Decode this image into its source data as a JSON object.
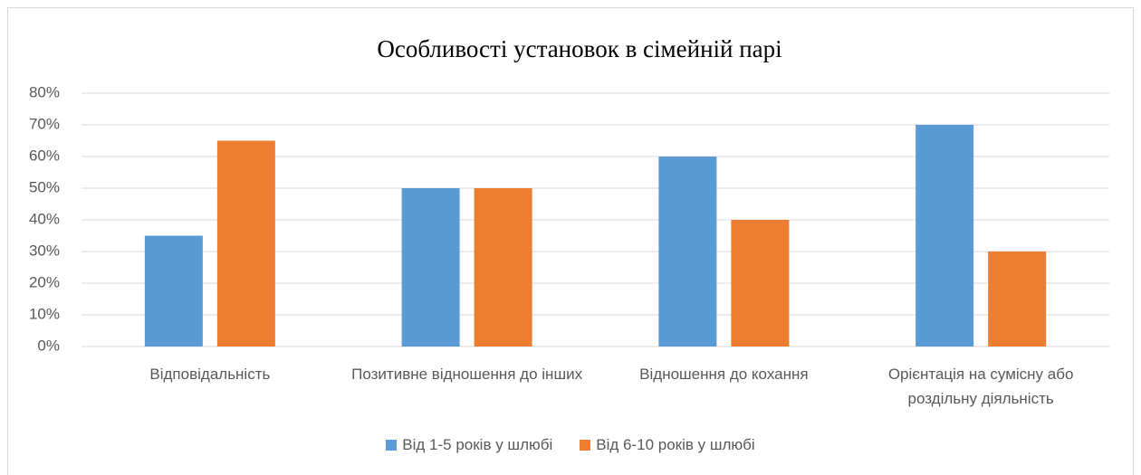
{
  "chart_data": {
    "type": "bar",
    "title": "Особливості установок в сімейній парі",
    "categories": [
      "Відповідальність",
      "Позитивне відношення до інших",
      "Відношення до кохання",
      "Орієнтація на сумісну або роздільну діяльність"
    ],
    "series": [
      {
        "name": "Від 1-5 років у шлюбі",
        "color": "#5b9bd5",
        "values": [
          35,
          50,
          60,
          70
        ]
      },
      {
        "name": "Від 6-10 років у шлюбі",
        "color": "#ed7d31",
        "values": [
          65,
          50,
          40,
          30
        ]
      }
    ],
    "ylim": [
      0,
      80
    ],
    "yticks": [
      {
        "value": 0,
        "label": "0%"
      },
      {
        "value": 10,
        "label": "10%"
      },
      {
        "value": 20,
        "label": "20%"
      },
      {
        "value": 30,
        "label": "30%"
      },
      {
        "value": 40,
        "label": "40%"
      },
      {
        "value": 50,
        "label": "50%"
      },
      {
        "value": 60,
        "label": "60%"
      },
      {
        "value": 70,
        "label": "70%"
      },
      {
        "value": 80,
        "label": "80%"
      }
    ],
    "grid": true,
    "legend": "bottom"
  }
}
